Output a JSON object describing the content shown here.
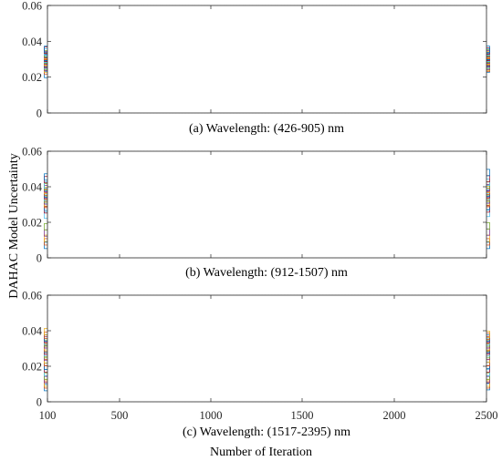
{
  "figure": {
    "ylabel": "DAHAC Model Uncertainty",
    "xlabel": "Number of Iteration",
    "colors": [
      "#0072BD",
      "#D95319",
      "#EDB120",
      "#7E2F8E",
      "#77AC30",
      "#4DBEEE",
      "#A2142F"
    ]
  },
  "chart_data": [
    {
      "type": "line",
      "caption": "(a) Wavelength: (426-905) nm",
      "x": [
        100,
        500,
        1000,
        1500,
        2000,
        2500
      ],
      "xticks_visible": false,
      "ylim": [
        0,
        0.06
      ],
      "yticks": [
        "0",
        "0.02",
        "0.04",
        "0.06"
      ],
      "grid": true,
      "marker": "square",
      "series": [
        {
          "values": [
            0.0215,
            0.0245,
            0.0245,
            0.0245,
            0.0245,
            0.0245
          ]
        },
        {
          "values": [
            0.0235,
            0.025,
            0.025,
            0.025,
            0.025,
            0.025
          ]
        },
        {
          "values": [
            0.0245,
            0.0255,
            0.0255,
            0.0255,
            0.0255,
            0.0255
          ]
        },
        {
          "values": [
            0.0255,
            0.026,
            0.026,
            0.026,
            0.026,
            0.026
          ]
        },
        {
          "values": [
            0.026,
            0.0265,
            0.0265,
            0.0265,
            0.0265,
            0.0265
          ]
        },
        {
          "values": [
            0.0265,
            0.027,
            0.027,
            0.027,
            0.027,
            0.027
          ]
        },
        {
          "values": [
            0.027,
            0.0275,
            0.0275,
            0.0275,
            0.0275,
            0.0275
          ]
        },
        {
          "values": [
            0.0275,
            0.028,
            0.028,
            0.028,
            0.028,
            0.028
          ]
        },
        {
          "values": [
            0.028,
            0.0285,
            0.0285,
            0.0285,
            0.0285,
            0.0285
          ]
        },
        {
          "values": [
            0.0285,
            0.029,
            0.029,
            0.029,
            0.029,
            0.029
          ]
        },
        {
          "values": [
            0.029,
            0.0295,
            0.0295,
            0.0295,
            0.0295,
            0.0295
          ]
        },
        {
          "values": [
            0.0295,
            0.03,
            0.03,
            0.03,
            0.03,
            0.03
          ]
        },
        {
          "values": [
            0.03,
            0.0305,
            0.0305,
            0.0305,
            0.0305,
            0.0305
          ]
        },
        {
          "values": [
            0.0305,
            0.031,
            0.031,
            0.031,
            0.031,
            0.031
          ]
        },
        {
          "values": [
            0.031,
            0.0315,
            0.0315,
            0.0315,
            0.0315,
            0.0315
          ]
        },
        {
          "values": [
            0.0315,
            0.032,
            0.032,
            0.032,
            0.032,
            0.032
          ]
        },
        {
          "values": [
            0.032,
            0.0325,
            0.0325,
            0.0325,
            0.0325,
            0.0325
          ]
        },
        {
          "values": [
            0.0325,
            0.033,
            0.033,
            0.033,
            0.033,
            0.033
          ]
        },
        {
          "values": [
            0.033,
            0.0335,
            0.0335,
            0.0335,
            0.0335,
            0.0335
          ]
        },
        {
          "values": [
            0.034,
            0.034,
            0.034,
            0.034,
            0.034,
            0.034
          ]
        },
        {
          "values": [
            0.035,
            0.035,
            0.0345,
            0.0345,
            0.0345,
            0.0345
          ]
        },
        {
          "values": [
            0.0355,
            0.0355,
            0.0355,
            0.0355,
            0.0355,
            0.0355
          ]
        }
      ]
    },
    {
      "type": "line",
      "caption": "(b) Wavelength: (912-1507) nm",
      "x": [
        100,
        500,
        1000,
        1500,
        2000,
        2500
      ],
      "xticks_visible": false,
      "ylim": [
        0,
        0.06
      ],
      "yticks": [
        "0",
        "0.02",
        "0.04",
        "0.06"
      ],
      "grid": true,
      "marker": "square",
      "series": [
        {
          "values": [
            0.007,
            0.007,
            0.007,
            0.007,
            0.007,
            0.007
          ]
        },
        {
          "values": [
            0.009,
            0.009,
            0.009,
            0.009,
            0.009,
            0.009
          ]
        },
        {
          "values": [
            0.011,
            0.011,
            0.011,
            0.011,
            0.011,
            0.011
          ]
        },
        {
          "values": [
            0.014,
            0.0145,
            0.0145,
            0.0145,
            0.0145,
            0.0145
          ]
        },
        {
          "values": [
            0.0175,
            0.018,
            0.018,
            0.018,
            0.0175,
            0.018
          ]
        },
        {
          "values": [
            0.024,
            0.025,
            0.025,
            0.025,
            0.025,
            0.025
          ]
        },
        {
          "values": [
            0.027,
            0.0275,
            0.0275,
            0.0275,
            0.0275,
            0.0275
          ]
        },
        {
          "values": [
            0.0285,
            0.029,
            0.029,
            0.029,
            0.029,
            0.029
          ]
        },
        {
          "values": [
            0.03,
            0.0305,
            0.0305,
            0.0305,
            0.0305,
            0.0305
          ]
        },
        {
          "values": [
            0.031,
            0.0315,
            0.0315,
            0.0315,
            0.0315,
            0.0315
          ]
        },
        {
          "values": [
            0.032,
            0.0325,
            0.0325,
            0.0325,
            0.0325,
            0.0325
          ]
        },
        {
          "values": [
            0.033,
            0.0335,
            0.0335,
            0.0335,
            0.0335,
            0.0335
          ]
        },
        {
          "values": [
            0.034,
            0.0345,
            0.0345,
            0.0345,
            0.0345,
            0.0345
          ]
        },
        {
          "values": [
            0.035,
            0.0355,
            0.0355,
            0.0355,
            0.0355,
            0.0355
          ]
        },
        {
          "values": [
            0.036,
            0.0365,
            0.0365,
            0.0365,
            0.0365,
            0.0365
          ]
        },
        {
          "values": [
            0.037,
            0.0375,
            0.0375,
            0.0375,
            0.0375,
            0.0375
          ]
        },
        {
          "values": [
            0.038,
            0.0385,
            0.0385,
            0.0385,
            0.0385,
            0.0385
          ]
        },
        {
          "values": [
            0.039,
            0.0395,
            0.0395,
            0.0395,
            0.0395,
            0.0395
          ]
        },
        {
          "values": [
            0.04,
            0.0405,
            0.041,
            0.041,
            0.041,
            0.041
          ]
        },
        {
          "values": [
            0.041,
            0.042,
            0.0425,
            0.0425,
            0.0425,
            0.0425
          ]
        },
        {
          "values": [
            0.044,
            0.0445,
            0.0445,
            0.0445,
            0.0445,
            0.0445
          ]
        },
        {
          "values": [
            0.0455,
            0.0465,
            0.0475,
            0.048,
            0.048,
            0.048
          ]
        }
      ]
    },
    {
      "type": "line",
      "caption": "(c) Wavelength: (1517-2395) nm",
      "x": [
        100,
        500,
        1000,
        1500,
        2000,
        2500
      ],
      "xticks": [
        "100",
        "500",
        "1000",
        "1500",
        "2000",
        "2500"
      ],
      "xticks_visible": true,
      "ylim": [
        0,
        0.06
      ],
      "yticks": [
        "0",
        "0.02",
        "0.04",
        "0.06"
      ],
      "grid": true,
      "marker": "square",
      "series": [
        {
          "values": [
            0.008,
            0.0085,
            0.0085,
            0.0085,
            0.0085,
            0.0085
          ]
        },
        {
          "values": [
            0.0095,
            0.0095,
            0.0095,
            0.0095,
            0.0095,
            0.0095
          ]
        },
        {
          "values": [
            0.0105,
            0.0105,
            0.0105,
            0.0105,
            0.0105,
            0.0105
          ]
        },
        {
          "values": [
            0.0125,
            0.0125,
            0.0125,
            0.0125,
            0.0125,
            0.0125
          ]
        },
        {
          "values": [
            0.0145,
            0.0145,
            0.0145,
            0.0145,
            0.0145,
            0.0145
          ]
        },
        {
          "values": [
            0.0165,
            0.0165,
            0.0165,
            0.0165,
            0.0165,
            0.0165
          ]
        },
        {
          "values": [
            0.0185,
            0.0185,
            0.0185,
            0.0185,
            0.0185,
            0.0185
          ]
        },
        {
          "values": [
            0.02,
            0.0205,
            0.0205,
            0.0205,
            0.0205,
            0.0205
          ]
        },
        {
          "values": [
            0.022,
            0.022,
            0.022,
            0.022,
            0.022,
            0.022
          ]
        },
        {
          "values": [
            0.0235,
            0.024,
            0.024,
            0.024,
            0.024,
            0.024
          ]
        },
        {
          "values": [
            0.025,
            0.0255,
            0.0255,
            0.0255,
            0.0255,
            0.0255
          ]
        },
        {
          "values": [
            0.0265,
            0.0265,
            0.0265,
            0.0265,
            0.0265,
            0.0265
          ]
        },
        {
          "values": [
            0.0275,
            0.0275,
            0.0275,
            0.0275,
            0.0275,
            0.0275
          ]
        },
        {
          "values": [
            0.0285,
            0.0285,
            0.0285,
            0.0285,
            0.0285,
            0.0285
          ]
        },
        {
          "values": [
            0.0295,
            0.0295,
            0.0295,
            0.0295,
            0.0295,
            0.0295
          ]
        },
        {
          "values": [
            0.03,
            0.0305,
            0.0305,
            0.0305,
            0.0305,
            0.0305
          ]
        },
        {
          "values": [
            0.031,
            0.031,
            0.031,
            0.031,
            0.031,
            0.031
          ]
        },
        {
          "values": [
            0.032,
            0.032,
            0.032,
            0.032,
            0.032,
            0.032
          ]
        },
        {
          "values": [
            0.033,
            0.033,
            0.033,
            0.033,
            0.033,
            0.033
          ]
        },
        {
          "values": [
            0.034,
            0.034,
            0.034,
            0.034,
            0.034,
            0.034
          ]
        },
        {
          "values": [
            0.035,
            0.035,
            0.035,
            0.035,
            0.035,
            0.035
          ]
        },
        {
          "values": [
            0.036,
            0.036,
            0.036,
            0.036,
            0.036,
            0.036
          ]
        },
        {
          "values": [
            0.0375,
            0.037,
            0.037,
            0.037,
            0.037,
            0.037
          ]
        },
        {
          "values": [
            0.0395,
            0.0375,
            0.0375,
            0.0375,
            0.0375,
            0.038
          ]
        }
      ]
    }
  ]
}
